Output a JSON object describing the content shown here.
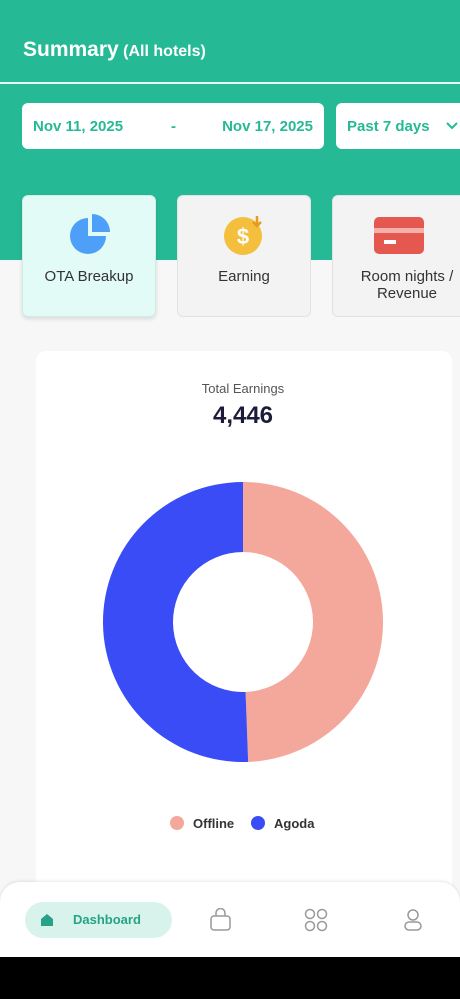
{
  "header": {
    "title": "Summary",
    "subtitle": "(All hotels)"
  },
  "date_range": {
    "start": "Nov 11, 2025",
    "separator": "-",
    "end": "Nov 17, 2025",
    "preset": "Past 7 days"
  },
  "tabs": [
    "OTA Breakup",
    "Earning",
    "Room nights / Revenue"
  ],
  "chart_data": {
    "type": "donut",
    "title": "Total Earnings",
    "total_label": "4,446",
    "categories": [
      "Offline",
      "Agoda"
    ],
    "values": [
      2197,
      2249
    ],
    "colors": [
      "#f4a79b",
      "#3a4cf5"
    ],
    "legend": "bottom"
  },
  "nav": [
    "Dashboard"
  ]
}
